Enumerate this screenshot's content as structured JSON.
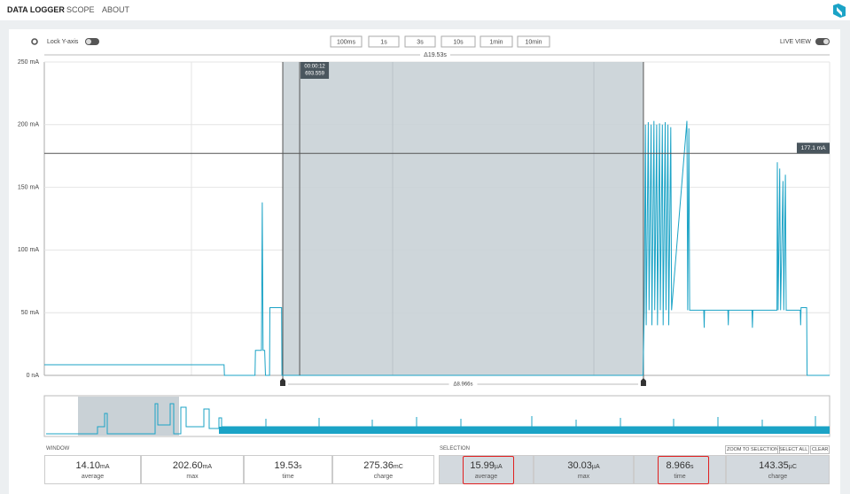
{
  "nav": {
    "tabs": [
      "DATA LOGGER",
      "SCOPE",
      "ABOUT"
    ]
  },
  "toolbar": {
    "lock_y_axis": "Lock Y-axis",
    "windows": [
      "100ms",
      "1s",
      "3s",
      "10s",
      "1min",
      "10min"
    ],
    "live_view": "LIVE VIEW"
  },
  "chart_data": {
    "type": "line",
    "x": [
      0,
      4.47,
      4.48,
      5.24,
      5.25,
      5.4,
      5.42,
      5.44,
      5.48,
      5.5,
      5.6,
      5.61,
      5.9,
      5.91,
      14.89,
      14.92,
      14.95,
      14.97,
      15.02,
      15.04,
      15.09,
      15.11,
      15.16,
      15.18,
      15.23,
      15.25,
      15.3,
      15.32,
      15.37,
      15.39,
      15.44,
      15.46,
      15.51,
      15.53,
      15.58,
      15.6,
      15.98,
      16.0,
      16.03,
      16.05,
      16.4,
      16.41,
      16.42,
      17.0,
      17.01,
      17.02,
      17.6,
      17.61,
      17.62,
      18.22,
      18.23,
      18.25,
      18.29,
      18.31,
      18.37,
      18.39,
      18.43,
      18.45,
      18.8,
      18.81,
      18.82,
      18.96,
      18.97,
      19.53
    ],
    "series": [
      {
        "color": "#1ba3c6",
        "values": [
          8.5,
          8.5,
          0,
          0,
          20,
          20,
          138,
          20,
          20,
          0,
          0,
          54,
          54,
          0,
          0,
          52,
          200,
          40,
          202,
          52,
          200,
          40,
          203,
          52,
          200,
          40,
          201,
          52,
          200,
          40,
          202,
          52,
          200,
          40,
          198,
          52,
          203,
          52,
          197,
          52,
          52,
          38,
          52,
          52,
          40,
          52,
          52,
          38,
          52,
          52,
          170,
          52,
          165,
          52,
          155,
          52,
          160,
          52,
          52,
          40,
          54,
          54,
          0,
          0
        ]
      }
    ],
    "xlim": [
      0,
      19.53
    ],
    "ylim": [
      0,
      250
    ],
    "yticks": [
      {
        "value": 0,
        "label": "0 nA"
      },
      {
        "value": 50,
        "label": "50 mA"
      },
      {
        "value": 100,
        "label": "100 mA"
      },
      {
        "value": 150,
        "label": "150 mA"
      },
      {
        "value": 200,
        "label": "200 mA"
      },
      {
        "value": 250,
        "label": "250 mA"
      }
    ],
    "grid": true,
    "selection": [
      5.93,
      14.9
    ],
    "cursor_x": 6.35,
    "cursor_time": "00:00:12",
    "cursor_value": "693.559",
    "marker": {
      "value": 177.1,
      "label": "177.1 mA"
    },
    "window_duration": "Δ19.53s",
    "selection_duration": "Δ8.966s"
  },
  "window": {
    "label": "WINDOW",
    "stats": [
      {
        "value": "14.10",
        "unit": "mA",
        "label": "average"
      },
      {
        "value": "202.60",
        "unit": "mA",
        "label": "max"
      },
      {
        "value": "19.53",
        "unit": "s",
        "label": "time"
      },
      {
        "value": "275.36",
        "unit": "mC",
        "label": "charge"
      }
    ]
  },
  "selection": {
    "label": "SELECTION",
    "buttons": [
      "ZOOM TO SELECTION",
      "SELECT ALL",
      "CLEAR"
    ],
    "stats": [
      {
        "value": "15.99",
        "unit": "µA",
        "label": "average"
      },
      {
        "value": "30.03",
        "unit": "µA",
        "label": "max"
      },
      {
        "value": "8.966",
        "unit": "s",
        "label": "time"
      },
      {
        "value": "143.35",
        "unit": "µC",
        "label": "charge"
      }
    ]
  }
}
